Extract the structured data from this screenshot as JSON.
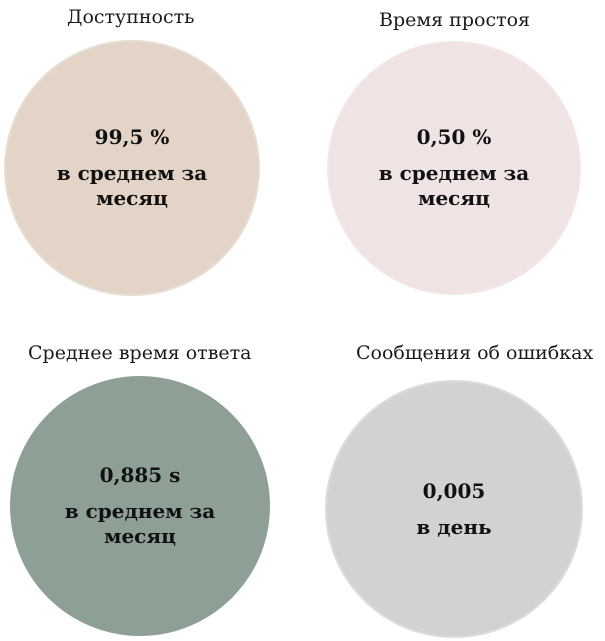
{
  "metrics": [
    {
      "title": "Доступность",
      "value": "99,5 %",
      "caption": "в среднем за месяц",
      "fill": "#e3d4c7",
      "border": "#e6ddd3"
    },
    {
      "title": "Время простоя",
      "value": "0,50 %",
      "caption": "в среднем за месяц",
      "fill": "#efe3e3",
      "border": "#f3e7e6"
    },
    {
      "title": "Среднее время ответа",
      "value": "0,885 s",
      "caption": "в среднем за месяц",
      "fill": "#8ea096",
      "border": "#8ea096"
    },
    {
      "title": "Сообщения об ошибках",
      "value": "0,005",
      "caption": "в день",
      "fill": "#d3d2d3",
      "border": "#dddcdd"
    }
  ]
}
